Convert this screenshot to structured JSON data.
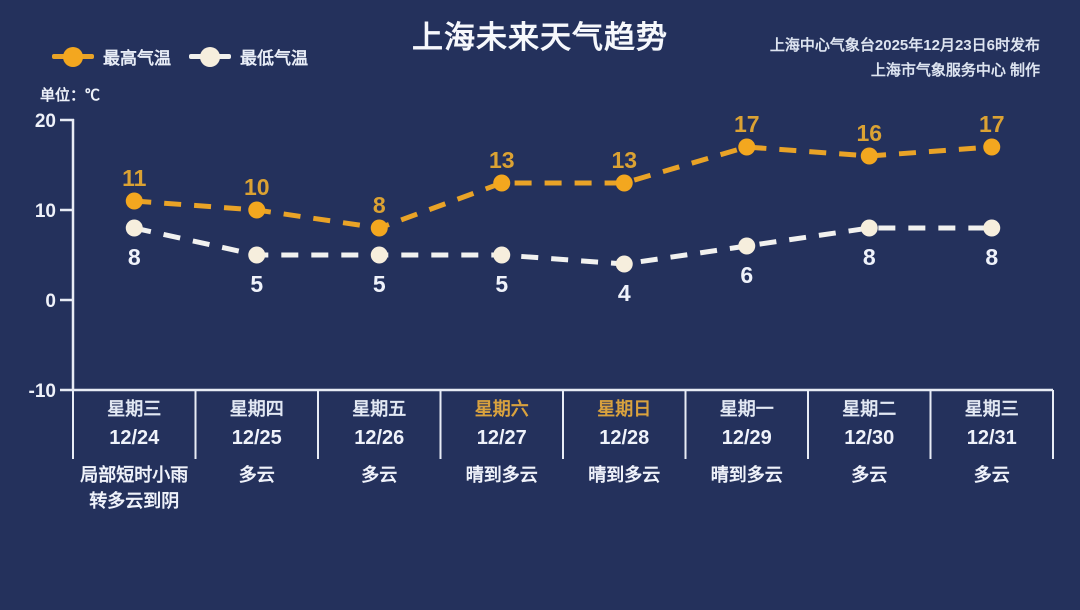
{
  "title": "上海未来天气趋势",
  "source": {
    "line1": "上海中心气象台2025年12月23日6时发布",
    "line2": "上海市气象服务中心 制作"
  },
  "legend": {
    "high_label": "最高气温",
    "low_label": "最低气温"
  },
  "axis": {
    "unit_label": "单位：℃"
  },
  "colors": {
    "background": "#24315c",
    "axis": "#e8ecf5",
    "text": "#eff2fa",
    "high_line": "#e9a327",
    "high_marker": "#f3a71f",
    "high_label": "#dba233",
    "low_line": "#f1f1ef",
    "low_marker": "#f6eedd",
    "low_label": "#eff2fa",
    "weekday_text": "#e2e8f3",
    "weekend_text": "#d9a23e"
  },
  "chart_data": {
    "type": "line",
    "title": "上海未来天气趋势",
    "ylabel": "单位：℃",
    "ylim": [
      -10,
      20
    ],
    "y_ticks": [
      20,
      10,
      0,
      -10
    ],
    "grid": false,
    "legend_position": "top-left",
    "categories": [
      {
        "weekday": "星期三",
        "date": "12/24",
        "weather": "局部短时小雨\n转多云到阴",
        "weekend": false
      },
      {
        "weekday": "星期四",
        "date": "12/25",
        "weather": "多云",
        "weekend": false
      },
      {
        "weekday": "星期五",
        "date": "12/26",
        "weather": "多云",
        "weekend": false
      },
      {
        "weekday": "星期六",
        "date": "12/27",
        "weather": "晴到多云",
        "weekend": true
      },
      {
        "weekday": "星期日",
        "date": "12/28",
        "weather": "晴到多云",
        "weekend": true
      },
      {
        "weekday": "星期一",
        "date": "12/29",
        "weather": "晴到多云",
        "weekend": false
      },
      {
        "weekday": "星期二",
        "date": "12/30",
        "weather": "多云",
        "weekend": false
      },
      {
        "weekday": "星期三",
        "date": "12/31",
        "weather": "多云",
        "weekend": false
      }
    ],
    "series": [
      {
        "name": "最高气温",
        "values": [
          11,
          10,
          8,
          13,
          13,
          17,
          16,
          17
        ],
        "label_position": "above"
      },
      {
        "name": "最低气温",
        "values": [
          8,
          5,
          5,
          5,
          4,
          6,
          8,
          8
        ],
        "label_position": "below"
      }
    ]
  }
}
